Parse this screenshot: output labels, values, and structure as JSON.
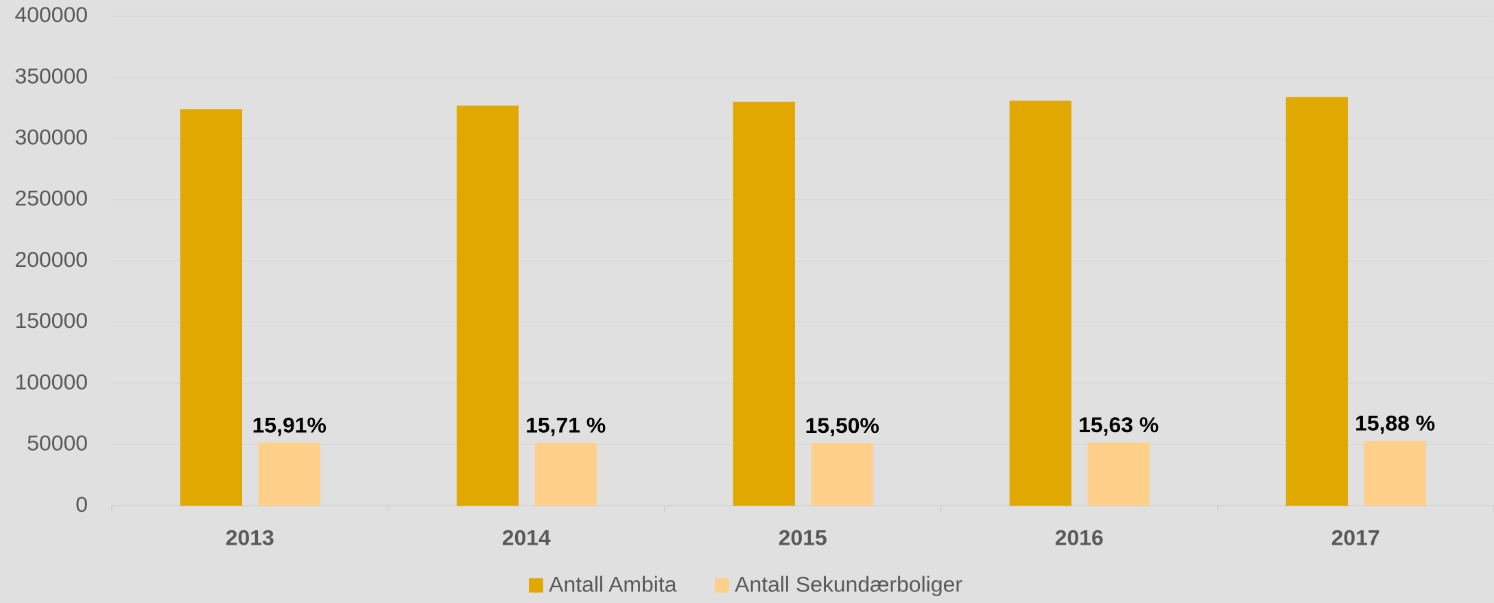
{
  "chart_data": {
    "type": "bar",
    "categories": [
      "2013",
      "2014",
      "2015",
      "2016",
      "2017"
    ],
    "series": [
      {
        "name": "Antall Ambita",
        "color": "#e0a800",
        "values": [
          324000,
          327000,
          330000,
          331000,
          334000
        ]
      },
      {
        "name": "Antall Sekundærboliger",
        "color": "#ffd08a",
        "values": [
          51500,
          51400,
          51200,
          51700,
          53000
        ],
        "annotations": [
          "15,91%",
          "15,71 %",
          "15,50%",
          "15,63 %",
          "15,88 %"
        ]
      }
    ],
    "ylim": [
      0,
      400000
    ],
    "yticks": [
      0,
      50000,
      100000,
      150000,
      200000,
      250000,
      300000,
      350000,
      400000
    ],
    "grid": true,
    "legend": "bottom"
  }
}
